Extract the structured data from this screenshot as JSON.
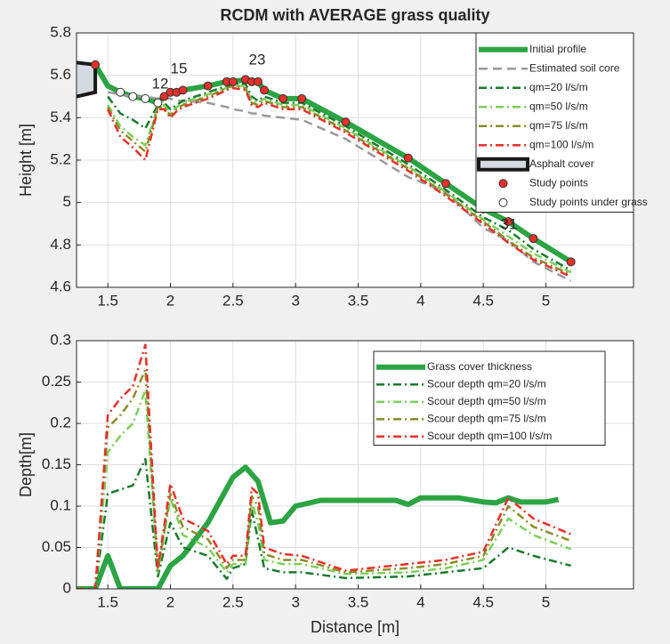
{
  "chart_data": [
    {
      "type": "line",
      "title": "RCDM with AVERAGE grass quality",
      "ylabel": "Height [m]",
      "xlim": [
        1.25,
        5.7
      ],
      "xticks": [
        1.5,
        2,
        2.5,
        3,
        3.5,
        4,
        4.5,
        5
      ],
      "ylim": [
        4.6,
        5.8
      ],
      "yticks": [
        4.6,
        4.8,
        5,
        5.2,
        5.4,
        5.6,
        5.8
      ],
      "grid": true,
      "legend": "upper right",
      "x": [
        1.4,
        1.5,
        1.6,
        1.7,
        1.8,
        1.9,
        1.95,
        2,
        2.05,
        2.1,
        2.3,
        2.45,
        2.5,
        2.6,
        2.65,
        2.7,
        2.75,
        2.9,
        3.05,
        3.4,
        3.9,
        4.2,
        4.5,
        4.7,
        4.9,
        5.2
      ],
      "series": [
        {
          "name": "Initial profile",
          "color": "#2ca444",
          "linestyle": "solid",
          "linewidth": 6,
          "values": [
            5.65,
            5.55,
            5.52,
            5.5,
            5.49,
            5.47,
            5.5,
            5.52,
            5.52,
            5.53,
            5.55,
            5.57,
            5.57,
            5.58,
            5.57,
            5.57,
            5.53,
            5.49,
            5.49,
            5.38,
            5.21,
            5.09,
            4.97,
            4.91,
            4.83,
            4.72
          ]
        },
        {
          "name": "Estimated soil core",
          "color": "#9a9a9a",
          "linestyle": "dashed",
          "linewidth": 2.5,
          "values": [
            null,
            5.52,
            5.51,
            5.5,
            5.5,
            5.49,
            5.49,
            5.49,
            5.48,
            5.48,
            5.47,
            5.45,
            5.44,
            5.43,
            5.42,
            5.42,
            5.41,
            5.4,
            5.39,
            5.3,
            5.12,
            5.05,
            4.88,
            4.82,
            4.72,
            4.63
          ]
        },
        {
          "name": "qm=20 l/s/m",
          "color": "#1a7a2e",
          "linestyle": "dashdot",
          "linewidth": 2.5,
          "values": [
            null,
            5.5,
            5.42,
            5.39,
            5.35,
            5.46,
            5.47,
            5.44,
            5.46,
            5.48,
            5.52,
            5.55,
            5.56,
            5.56,
            5.5,
            5.48,
            5.5,
            5.47,
            5.47,
            5.36,
            5.18,
            5.06,
            4.93,
            4.87,
            4.78,
            4.68
          ]
        },
        {
          "name": "qm=50 l/s/m",
          "color": "#7ccf5a",
          "linestyle": "dashdot",
          "linewidth": 2.5,
          "values": [
            null,
            5.46,
            5.36,
            5.31,
            5.27,
            5.45,
            5.46,
            5.42,
            5.45,
            5.47,
            5.51,
            5.54,
            5.55,
            5.55,
            5.48,
            5.47,
            5.49,
            5.46,
            5.46,
            5.35,
            5.17,
            5.05,
            4.92,
            4.84,
            4.76,
            4.67
          ]
        },
        {
          "name": "qm=75 l/s/m",
          "color": "#8c8c2a",
          "linestyle": "dashdot",
          "linewidth": 2.5,
          "values": [
            null,
            5.45,
            5.34,
            5.29,
            5.24,
            5.45,
            5.45,
            5.41,
            5.44,
            5.46,
            5.5,
            5.54,
            5.55,
            5.54,
            5.47,
            5.46,
            5.48,
            5.45,
            5.45,
            5.34,
            5.16,
            5.04,
            4.91,
            4.82,
            4.74,
            4.66
          ]
        },
        {
          "name": "qm=100 l/s/m",
          "color": "#e8302a",
          "linestyle": "dashdot",
          "linewidth": 2.5,
          "values": [
            null,
            5.44,
            5.31,
            5.26,
            5.2,
            5.44,
            5.44,
            5.4,
            5.43,
            5.45,
            5.49,
            5.53,
            5.54,
            5.53,
            5.46,
            5.45,
            5.47,
            5.44,
            5.44,
            5.33,
            5.15,
            5.03,
            4.9,
            4.81,
            4.73,
            4.65
          ]
        },
        {
          "name": "Asphalt cover",
          "type": "polygon",
          "color": "#1a1a1a",
          "fill": "#d5d9e0",
          "linewidth": 4,
          "x": [
            1.25,
            1.4,
            1.4,
            1.25
          ],
          "values": [
            5.66,
            5.65,
            5.52,
            5.5
          ]
        },
        {
          "name": "Study points",
          "type": "scatter",
          "color": "#e8302a",
          "x": [
            1.4,
            1.95,
            2,
            2.05,
            2.1,
            2.3,
            2.45,
            2.5,
            2.6,
            2.65,
            2.7,
            2.75,
            2.9,
            3.05,
            3.4,
            3.9,
            4.2,
            4.5,
            4.7,
            4.9,
            5.2
          ],
          "values": [
            5.65,
            5.5,
            5.52,
            5.52,
            5.53,
            5.55,
            5.57,
            5.57,
            5.58,
            5.57,
            5.57,
            5.53,
            5.49,
            5.49,
            5.38,
            5.21,
            5.09,
            4.97,
            4.91,
            4.83,
            4.72
          ]
        },
        {
          "name": "Study points under grass",
          "type": "scatter",
          "color": "#ffffff",
          "x": [
            1.6,
            1.7,
            1.8,
            1.9
          ],
          "values": [
            5.52,
            5.5,
            5.49,
            5.47
          ]
        }
      ],
      "annotations": [
        "12",
        "15",
        "23",
        "31"
      ]
    },
    {
      "type": "line",
      "ylabel": "Depth[m]",
      "xlabel": "Distance [m]",
      "xlim": [
        1.25,
        5.7
      ],
      "xticks": [
        1.5,
        2,
        2.5,
        3,
        3.5,
        4,
        4.5,
        5
      ],
      "ylim": [
        0,
        0.3
      ],
      "yticks": [
        0,
        0.05,
        0.1,
        0.15,
        0.2,
        0.25,
        0.3
      ],
      "grid": true,
      "legend": "upper right",
      "x": [
        1.25,
        1.4,
        1.5,
        1.6,
        1.7,
        1.8,
        1.9,
        2,
        2.1,
        2.3,
        2.45,
        2.5,
        2.6,
        2.65,
        2.7,
        2.75,
        2.9,
        3.05,
        3.4,
        3.9,
        4.2,
        4.5,
        4.7,
        4.9,
        5.2
      ],
      "series": [
        {
          "name": "Grass cover thickness",
          "color": "#2ca444",
          "linestyle": "solid",
          "linewidth": 6,
          "x": [
            1.25,
            1.4,
            1.5,
            1.6,
            1.8,
            1.9,
            2,
            2.1,
            2.3,
            2.5,
            2.6,
            2.7,
            2.8,
            2.9,
            3,
            3.2,
            3.5,
            3.8,
            3.9,
            4,
            4.3,
            4.5,
            4.6,
            4.7,
            4.8,
            5,
            5.1
          ],
          "values": [
            0,
            0,
            0.04,
            0,
            0,
            0,
            0.028,
            0.04,
            0.08,
            0.135,
            0.147,
            0.13,
            0.08,
            0.082,
            0.1,
            0.107,
            0.107,
            0.107,
            0.102,
            0.11,
            0.11,
            0.105,
            0.104,
            0.11,
            0.105,
            0.105,
            0.108
          ]
        },
        {
          "name": "Scour depth qm=20 l/s/m",
          "color": "#1a7a2e",
          "linestyle": "dashdot",
          "linewidth": 2.5,
          "values": [
            0,
            0,
            0.115,
            0.12,
            0.125,
            0.157,
            0.015,
            0.08,
            0.05,
            0.04,
            0.012,
            0.025,
            0.03,
            0.095,
            0.06,
            0.025,
            0.02,
            0.02,
            0.013,
            0.015,
            0.02,
            0.025,
            0.05,
            0.04,
            0.028
          ]
        },
        {
          "name": "Scour depth qm=50 l/s/m",
          "color": "#7ccf5a",
          "linestyle": "dashdot",
          "linewidth": 2.5,
          "values": [
            0,
            0,
            0.165,
            0.185,
            0.2,
            0.24,
            0.02,
            0.11,
            0.065,
            0.05,
            0.02,
            0.03,
            0.03,
            0.105,
            0.08,
            0.035,
            0.03,
            0.03,
            0.018,
            0.02,
            0.025,
            0.035,
            0.085,
            0.065,
            0.048
          ]
        },
        {
          "name": "Scour depth qm=75 l/s/m",
          "color": "#8c8c2a",
          "linestyle": "dashdot",
          "linewidth": 2.5,
          "values": [
            0,
            0,
            0.195,
            0.21,
            0.23,
            0.265,
            0.022,
            0.115,
            0.075,
            0.06,
            0.025,
            0.035,
            0.035,
            0.112,
            0.1,
            0.042,
            0.035,
            0.035,
            0.02,
            0.025,
            0.03,
            0.04,
            0.1,
            0.075,
            0.058
          ]
        },
        {
          "name": "Scour depth qm=100 l/s/m",
          "color": "#e8302a",
          "linestyle": "dashdot",
          "linewidth": 2.5,
          "values": [
            0,
            0,
            0.21,
            0.23,
            0.245,
            0.295,
            0.025,
            0.127,
            0.085,
            0.07,
            0.03,
            0.04,
            0.04,
            0.122,
            0.115,
            0.05,
            0.042,
            0.04,
            0.022,
            0.03,
            0.035,
            0.045,
            0.11,
            0.085,
            0.066
          ]
        }
      ]
    }
  ]
}
